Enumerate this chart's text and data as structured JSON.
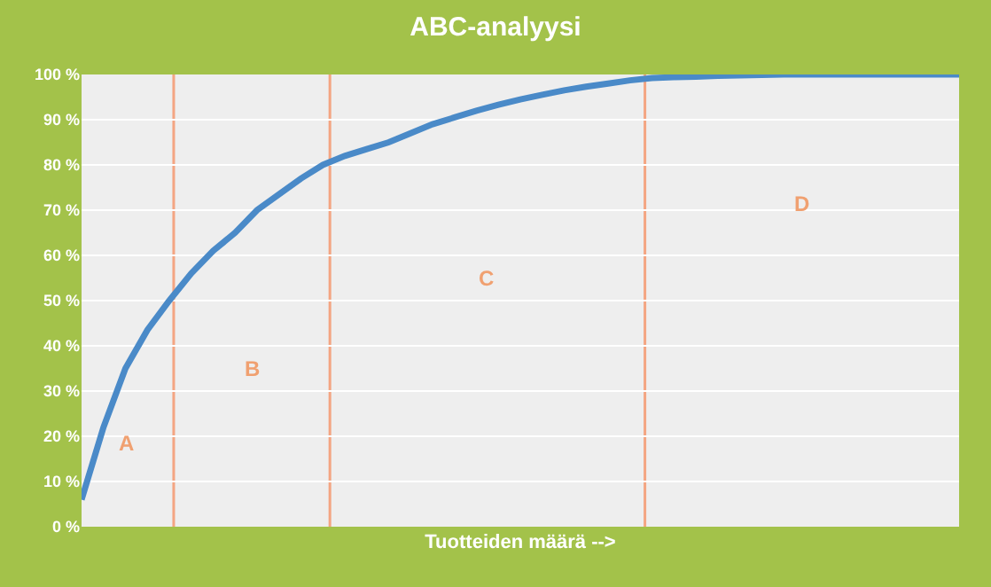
{
  "chart_data": {
    "type": "line",
    "title": "ABC-analyysi",
    "xlabel": "Tuotteiden määrä -->",
    "categories": [
      null,
      null,
      null,
      null,
      null,
      null,
      null,
      null,
      null,
      null,
      null,
      null,
      null,
      null,
      null,
      null,
      null,
      null,
      null,
      null,
      null,
      null,
      null,
      null,
      null,
      null,
      null,
      null,
      null,
      null,
      null,
      null,
      null,
      null,
      null,
      null,
      null,
      null,
      null,
      null,
      null
    ],
    "series": [
      {
        "color": "#4a8ac8",
        "values": [
          6,
          22,
          35,
          43.5,
          50,
          56,
          61,
          65,
          70,
          73.5,
          77,
          80,
          82,
          83.5,
          85,
          87,
          89,
          90.5,
          92,
          93.3,
          94.5,
          95.5,
          96.5,
          97.3,
          98,
          98.7,
          99.2,
          99.4,
          99.5,
          99.7,
          99.8,
          99.9,
          100,
          100,
          100,
          100,
          100,
          100,
          100,
          100,
          100
        ]
      }
    ],
    "ylim": [
      0,
      100
    ],
    "yticks": [
      {
        "value": 0,
        "label": "0 %"
      },
      {
        "value": 10,
        "label": "10 %"
      },
      {
        "value": 20,
        "label": "20 %"
      },
      {
        "value": 30,
        "label": "30 %"
      },
      {
        "value": 40,
        "label": "40 %"
      },
      {
        "value": 50,
        "label": "50 %"
      },
      {
        "value": 60,
        "label": "60 %"
      },
      {
        "value": 70,
        "label": "70 %"
      },
      {
        "value": 80,
        "label": "80 %"
      },
      {
        "value": 90,
        "label": "90 %"
      },
      {
        "value": 100,
        "label": "100 %"
      }
    ],
    "annotations": [
      "A",
      "B",
      "C",
      "D"
    ],
    "grid": "y",
    "tick_labels": "y",
    "marker": "none",
    "line_style": "solid"
  }
}
